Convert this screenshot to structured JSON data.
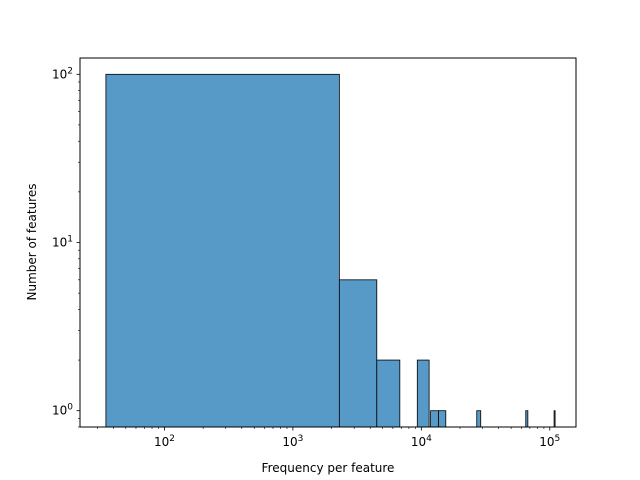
{
  "chart_data": {
    "type": "bar",
    "title": "",
    "xlabel": "Frequency per feature",
    "ylabel": "Number of features",
    "x_scale": "log",
    "y_scale": "log",
    "xlim": [
      22,
      160000
    ],
    "ylim": [
      0.8,
      125
    ],
    "x_ticks": [
      {
        "value": 100,
        "base": "10",
        "exp": "2"
      },
      {
        "value": 1000,
        "base": "10",
        "exp": "3"
      },
      {
        "value": 10000,
        "base": "10",
        "exp": "4"
      },
      {
        "value": 100000,
        "base": "10",
        "exp": "5"
      }
    ],
    "y_ticks": [
      {
        "value": 1,
        "base": "10",
        "exp": "0"
      },
      {
        "value": 10,
        "base": "10",
        "exp": "1"
      },
      {
        "value": 100,
        "base": "10",
        "exp": "2"
      }
    ],
    "bins": [
      {
        "x0": 35,
        "x1": 2300,
        "count": 100
      },
      {
        "x0": 2300,
        "x1": 4500,
        "count": 6
      },
      {
        "x0": 4500,
        "x1": 6800,
        "count": 2
      },
      {
        "x0": 9300,
        "x1": 11500,
        "count": 2
      },
      {
        "x0": 11800,
        "x1": 13600,
        "count": 1
      },
      {
        "x0": 13600,
        "x1": 15500,
        "count": 1
      },
      {
        "x0": 27000,
        "x1": 29000,
        "count": 1
      },
      {
        "x0": 65000,
        "x1": 67500,
        "count": 1
      },
      {
        "x0": 108000,
        "x1": 110000,
        "count": 1
      }
    ],
    "bar_color": "#5799c7",
    "edge_color": "#000000",
    "grid": false,
    "legend": "none"
  }
}
